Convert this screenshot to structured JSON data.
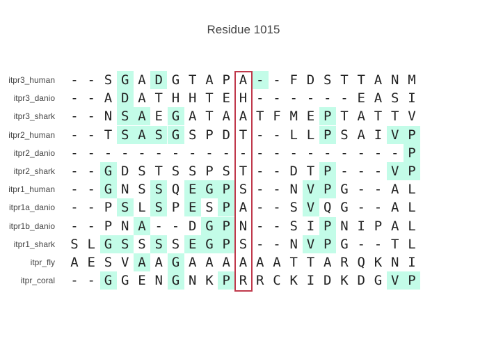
{
  "title": "Residue 1015",
  "highlight_color": "#c0394b",
  "conserved_color": "#c3fce8",
  "highlight_column_index": 10,
  "rows": [
    {
      "label": "itpr3_human",
      "seq": "--SGADGTAPA--FDSTTANM",
      "shaded": [
        3,
        5,
        11
      ]
    },
    {
      "label": "itpr3_danio",
      "seq": "--ADATHHTEH------EASI",
      "shaded": [
        3
      ]
    },
    {
      "label": "itpr3_shark",
      "seq": "--NSAEGATAATFMEPTATTV",
      "shaded": [
        3,
        4,
        6,
        15
      ]
    },
    {
      "label": "itpr2_human",
      "seq": "--TSASGSPDT--LLPSAIVP",
      "shaded": [
        3,
        4,
        5,
        6,
        15,
        19,
        20
      ]
    },
    {
      "label": "itpr2_danio",
      "seq": "--------------------P",
      "shaded": [
        20
      ]
    },
    {
      "label": "itpr2_shark",
      "seq": "--GDSTSSPST--DTP---VP",
      "shaded": [
        2,
        15,
        19,
        20
      ]
    },
    {
      "label": "itpr1_human",
      "seq": "--GNSSQEGPS--NVPG--AL",
      "shaded": [
        2,
        5,
        7,
        8,
        9,
        14,
        15
      ]
    },
    {
      "label": "itpr1a_danio",
      "seq": "--PSLSPESPA--SVQG--AL",
      "shaded": [
        3,
        5,
        7,
        9,
        14
      ]
    },
    {
      "label": "itpr1b_danio",
      "seq": "--PNA--DGPN--SIPNIPAL",
      "shaded": [
        4,
        8,
        9,
        15
      ]
    },
    {
      "label": "itpr1_shark",
      "seq": "SLGSSSSEGPS--NVPG--TL",
      "shaded": [
        2,
        3,
        5,
        7,
        8,
        9,
        14,
        15
      ]
    },
    {
      "label": "itpr_fly",
      "seq": "AESVAAGAAAAAATTARQKNI",
      "shaded": [
        4,
        6
      ]
    },
    {
      "label": "itpr_coral",
      "seq": "--GGENGNKPRRCKIDKDGVP",
      "shaded": [
        2,
        6,
        9,
        19,
        20
      ]
    }
  ]
}
